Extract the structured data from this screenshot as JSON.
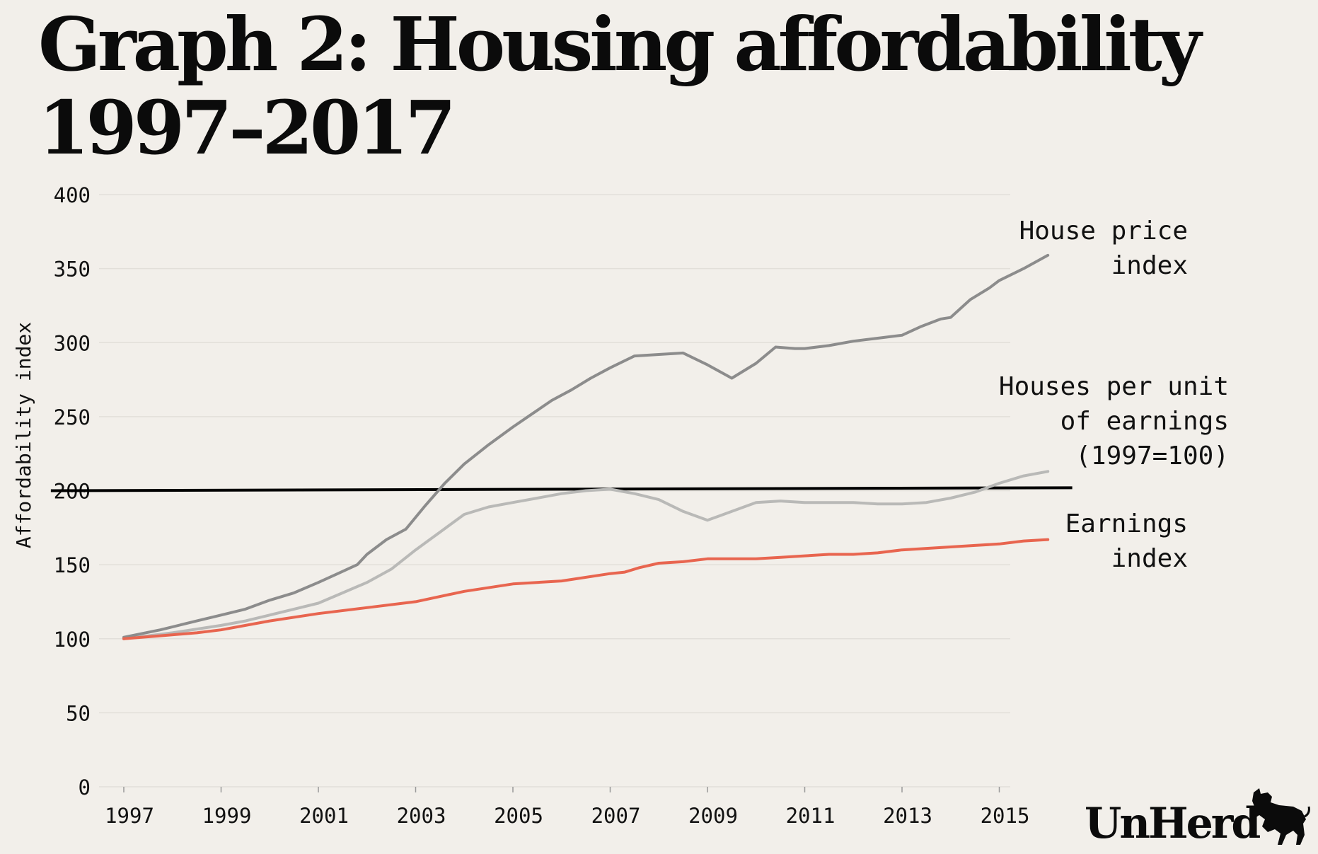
{
  "title": {
    "line1": "Graph 2: Housing affordability",
    "line2": "1997–2017"
  },
  "logo": {
    "text": "UnHerd",
    "icon": "bull-icon"
  },
  "chart_data": {
    "type": "line",
    "ylabel": "Affordability index",
    "xlabel": "",
    "ylim": [
      0,
      400
    ],
    "xlim": [
      1997,
      2016.2
    ],
    "yticks": [
      0,
      50,
      100,
      150,
      200,
      250,
      300,
      350,
      400
    ],
    "xticks": [
      1997,
      1999,
      2001,
      2003,
      2005,
      2007,
      2009,
      2011,
      2013,
      2015
    ],
    "grid": "horizontal",
    "colors": {
      "house_price": "#8c8c8c",
      "houses_per_earnings": "#b9b9b7",
      "earnings": "#e8654f",
      "reference": "#000000",
      "grid": "#e2dfd9"
    },
    "series": [
      {
        "name": "House price index",
        "label_lines": [
          "House price",
          "index"
        ],
        "color_key": "house_price",
        "x": [
          1997,
          1997.75,
          1998.5,
          1999,
          1999.5,
          2000,
          2000.5,
          2001,
          2001.4,
          2001.8,
          2002,
          2002.4,
          2002.8,
          2003.2,
          2003.6,
          2004,
          2004.5,
          2005,
          2005.4,
          2005.8,
          2006.2,
          2006.6,
          2007,
          2007.5,
          2008,
          2008.5,
          2009,
          2009.5,
          2010,
          2010.4,
          2010.8,
          2011,
          2011.5,
          2012,
          2012.5,
          2013,
          2013.4,
          2013.8,
          2014,
          2014.4,
          2014.8,
          2015,
          2015.5,
          2016
        ],
        "values": [
          101,
          106,
          112,
          116,
          120,
          126,
          131,
          138,
          144,
          150,
          157,
          167,
          174,
          190,
          205,
          218,
          231,
          243,
          252,
          261,
          268,
          276,
          283,
          291,
          292,
          293,
          285,
          276,
          286,
          297,
          296,
          296,
          298,
          301,
          303,
          305,
          311,
          316,
          317,
          329,
          337,
          342,
          350,
          359
        ]
      },
      {
        "name": "Houses per unit of earnings (1997=100)",
        "label_lines": [
          "Houses per unit",
          "of earnings",
          "(1997=100)"
        ],
        "color_key": "houses_per_earnings",
        "x": [
          1997,
          1997.5,
          1998,
          1999,
          1999.5,
          2000,
          2000.5,
          2001,
          2001.5,
          2002,
          2002.5,
          2003,
          2003.5,
          2004,
          2004.5,
          2005,
          2005.5,
          2006,
          2006.5,
          2007,
          2007.5,
          2008,
          2008.5,
          2009,
          2009.5,
          2010,
          2010.5,
          2011,
          2011.5,
          2012,
          2012.5,
          2013,
          2013.5,
          2014,
          2014.5,
          2015,
          2015.5,
          2016
        ],
        "values": [
          100,
          102,
          104,
          109,
          112,
          116,
          120,
          124,
          131,
          138,
          147,
          160,
          172,
          184,
          189,
          192,
          195,
          198,
          200,
          201,
          198,
          194,
          186,
          180,
          186,
          192,
          193,
          192,
          192,
          192,
          191,
          191,
          192,
          195,
          199,
          205,
          210,
          213
        ]
      },
      {
        "name": "Earnings index",
        "label_lines": [
          "Earnings",
          "index"
        ],
        "color_key": "earnings",
        "x": [
          1997,
          1997.75,
          1998.5,
          1999,
          2000,
          2001,
          2002,
          2003,
          2004,
          2005,
          2006,
          2007,
          2007.3,
          2007.6,
          2008,
          2008.5,
          2009,
          2009.5,
          2010,
          2010.5,
          2011,
          2011.5,
          2012,
          2012.5,
          2013,
          2013.5,
          2014,
          2014.5,
          2015,
          2015.5,
          2016
        ],
        "values": [
          100,
          102,
          104,
          106,
          112,
          117,
          121,
          125,
          132,
          137,
          139,
          144,
          145,
          148,
          151,
          152,
          154,
          154,
          154,
          155,
          156,
          157,
          157,
          158,
          160,
          161,
          162,
          163,
          164,
          166,
          167
        ]
      }
    ],
    "reference_line": {
      "x": [
        1995.5,
        2016.5
      ],
      "values": [
        200,
        202
      ]
    }
  }
}
